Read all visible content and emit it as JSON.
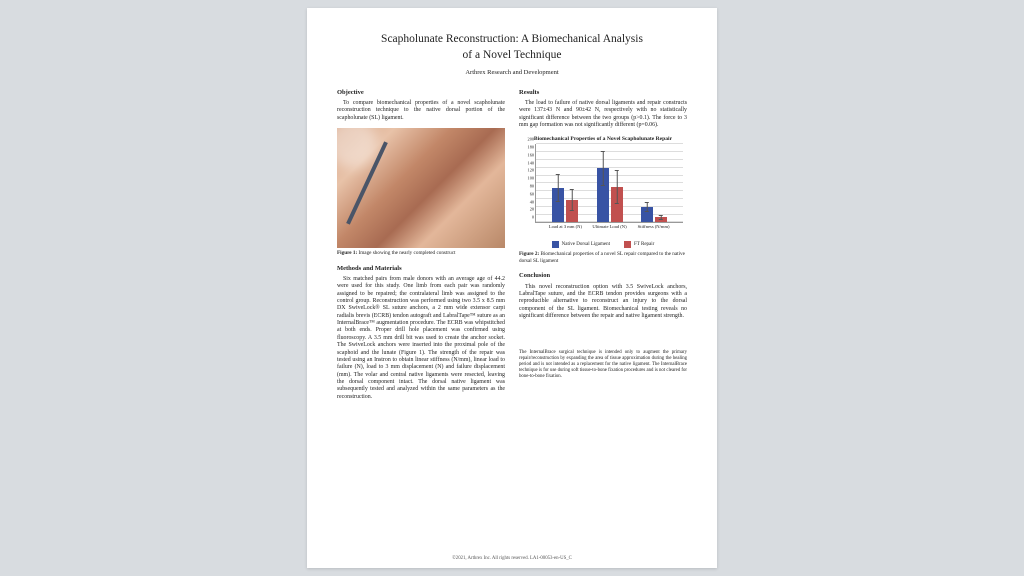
{
  "title_line1": "Scapholunate Reconstruction: A Biomechanical Analysis",
  "title_line2": "of a Novel Technique",
  "author": "Arthrex Research and Development",
  "sections": {
    "objective_hd": "Objective",
    "objective_body": "To compare biomechanical properties of a novel scapholunate reconstruction technique to the native dorsal portion of the scapholunate (SL) ligament.",
    "fig1_caption_bold": "Figure 1:",
    "fig1_caption": " Image showing the nearly completed construct",
    "methods_hd": "Methods and Materials",
    "methods_body": "Six matched pairs from male donors with an average age of 44.2 were used for this study. One limb from each pair was randomly assigned to be repaired; the contralateral limb was assigned to the control group. Reconstruction was performed using two 3.5 x 8.5 mm DX SwiveLock® SL suture anchors, a 2 mm wide extensor carpi radialis brevis (ECRB) tendon autograft and LabralTape™ suture as an InternalBrace™ augmentation procedure. The ECRB was whipstitched at both ends. Proper drill hole placement was confirmed using fluoroscopy. A 3.5 mm drill bit was used to create the anchor socket. The SwiveLock anchors were inserted into the proximal pole of the scaphoid and the lunate (Figure 1). The strength of the repair was tested using an Instron to obtain linear stiffness (N/mm), linear load to failure (N), load to 3 mm displacement (N) and failure displacement (mm). The volar and central native ligaments were resected, leaving the dorsal component intact. The dorsal native ligament was subsequently tested and analyzed within the same parameters as the reconstruction.",
    "results_hd": "Results",
    "results_body": "The load to failure of native dorsal ligaments and repair constructs were 137±43 N and 90±42 N, respectively with no statistically significant difference between the two groups (p>0.1). The force to 3 mm gap formation was not significantly different (p=0.06).",
    "fig2_caption_bold": "Figure 2:",
    "fig2_caption": " Biomechanical properties of a novel SL repair compared to the native dorsal SL ligament",
    "conclusion_hd": "Conclusion",
    "conclusion_body": "This novel reconstruction option with 3.5 SwiveLock anchors, LabralTape suture, and the ECRB tendon provides surgeons with a reproducible alternative to reconstruct an injury to the dorsal component of the SL ligament. Biomechanical testing reveals no significant difference between the repair and native ligament strength.",
    "disclaimer": "The InternalBrace surgical technique is intended only to augment the primary repair/reconstruction by expanding the area of tissue approximation during the healing period and is not intended as a replacement for the native ligament. The InternalBrace technique is for use during soft tissue-to-bone fixation procedures and is not cleared for bone-to-bone fixation."
  },
  "chart": {
    "title": "Biomechanical Properties of a Novel Scapholunate Repair",
    "ymax": 200,
    "ytick_step": 20,
    "yticks": [
      0,
      20,
      40,
      60,
      80,
      100,
      120,
      140,
      160,
      180,
      200
    ],
    "categories": [
      "Load at 3 mm (N)",
      "Ultimate Load (N)",
      "Stiffness (N/mm)"
    ],
    "series": [
      {
        "name": "Native Dorsal Ligament",
        "color": "#3853a4",
        "values": [
          88,
          137,
          40
        ],
        "err": [
          35,
          43,
          12
        ]
      },
      {
        "name": "FT Repair",
        "color": "#c1504f",
        "values": [
          58,
          90,
          14
        ],
        "err": [
          28,
          42,
          6
        ]
      }
    ],
    "group_positions_pct": [
      20,
      50,
      80
    ],
    "grid_color": "#dddddd",
    "axis_color": "#999999"
  },
  "footer": "©2021, Arthrex Inc. All rights reserved. LA1-00053-en-US_C"
}
